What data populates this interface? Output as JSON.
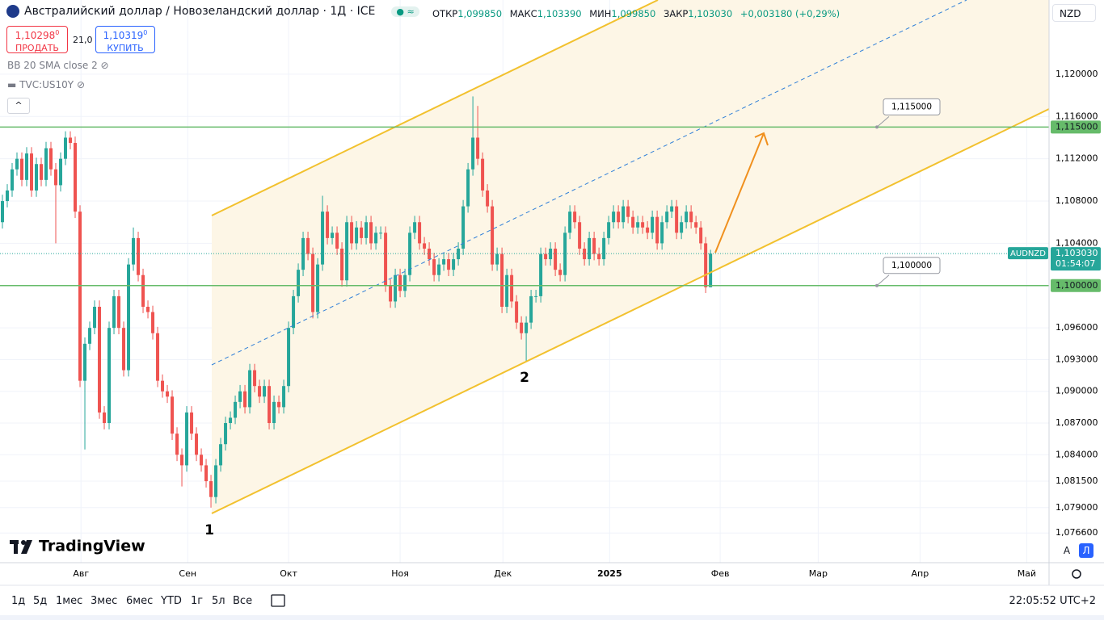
{
  "header": {
    "title": "Австралийский доллар / Новозеландский доллар · 1Д · ICE",
    "ohlc": [
      {
        "label": "ОТКР",
        "value": "1,099850"
      },
      {
        "label": "МАКС",
        "value": "1,103390"
      },
      {
        "label": "МИН",
        "value": "1,099850"
      },
      {
        "label": "ЗАКР",
        "value": "1,103030"
      }
    ],
    "change": "+0,003180 (+0,29%)",
    "currency": "NZD"
  },
  "trade": {
    "sell_price": "1,10298",
    "sell_sup": "0",
    "sell": "ПРОДАТЬ",
    "spread": "21,0",
    "buy_price": "1,10319",
    "buy_sup": "0",
    "buy": "КУПИТЬ"
  },
  "indicators": [
    "BB 20 SMA close 2",
    "TVC:US10Y"
  ],
  "chart_data": {
    "type": "candlestick",
    "symbol": "AUDNZD",
    "open": [
      1.106,
      1.108,
      1.109,
      1.111,
      1.112,
      1.11,
      1.1125,
      1.109,
      1.1115,
      1.11,
      1.113,
      1.111,
      1.1095,
      1.112,
      1.114,
      1.1135,
      1.107,
      1.091,
      1.0945,
      1.096,
      1.098,
      1.088,
      1.087,
      1.096,
      1.099,
      1.096,
      1.092,
      1.102,
      1.1045,
      1.101,
      1.098,
      1.0975,
      1.0955,
      1.091,
      1.09,
      1.0895,
      1.086,
      1.084,
      1.083,
      1.088,
      1.086,
      1.084,
      1.083,
      1.0815,
      1.08,
      1.083,
      1.085,
      1.087,
      1.0875,
      1.089,
      1.09,
      1.0885,
      1.092,
      1.0905,
      1.0895,
      1.0905,
      1.087,
      1.089,
      1.0885,
      1.0905,
      1.096,
      1.099,
      1.1015,
      1.1045,
      1.103,
      1.0975,
      1.102,
      1.107,
      1.1045,
      1.105,
      1.1035,
      1.1005,
      1.106,
      1.104,
      1.1055,
      1.1045,
      1.106,
      1.104,
      1.105,
      1.105,
      1.1,
      1.0985,
      1.101,
      1.0995,
      1.101,
      1.105,
      1.106,
      1.104,
      1.1035,
      1.1025,
      1.101,
      1.102,
      1.1025,
      1.1015,
      1.1025,
      1.1035,
      1.1075,
      1.111,
      1.114,
      1.112,
      1.109,
      1.1075,
      1.102,
      1.103,
      1.098,
      1.101,
      1.0985,
      1.0965,
      1.0955,
      1.0965,
      1.099,
      1.099,
      1.103,
      1.1025,
      1.1035,
      1.1015,
      1.101,
      1.105,
      1.107,
      1.106,
      1.1035,
      1.1025,
      1.1045,
      1.103,
      1.1025,
      1.1045,
      1.106,
      1.107,
      1.106,
      1.1075,
      1.1065,
      1.1055,
      1.106,
      1.1055,
      1.105,
      1.1065,
      1.104,
      1.106,
      1.107,
      1.1075,
      1.105,
      1.106,
      1.107,
      1.106,
      1.1055,
      1.104,
      1.09985
    ],
    "high": [
      1.1086,
      1.1096,
      1.1116,
      1.1126,
      1.1126,
      1.1131,
      1.1131,
      1.1121,
      1.1121,
      1.1136,
      1.1136,
      1.1116,
      1.1126,
      1.1146,
      1.1146,
      1.1141,
      1.1076,
      1.0951,
      1.0966,
      1.0986,
      1.0986,
      1.0886,
      1.0966,
      1.0996,
      1.0996,
      1.0966,
      1.1026,
      1.1055,
      1.1051,
      1.1016,
      1.0986,
      1.0981,
      1.0961,
      1.0916,
      1.0906,
      1.0901,
      1.0866,
      1.0846,
      1.0886,
      1.0886,
      1.0866,
      1.0846,
      1.0836,
      1.0821,
      1.0836,
      1.0856,
      1.0876,
      1.0881,
      1.0896,
      1.0906,
      1.0906,
      1.0926,
      1.0926,
      1.0911,
      1.0911,
      1.0911,
      1.0896,
      1.0896,
      1.0911,
      1.0966,
      1.0996,
      1.1021,
      1.1051,
      1.1051,
      1.1036,
      1.1026,
      1.1085,
      1.1076,
      1.1056,
      1.1056,
      1.1041,
      1.1066,
      1.1066,
      1.1061,
      1.1061,
      1.1066,
      1.1066,
      1.1056,
      1.1056,
      1.1056,
      1.1006,
      1.1016,
      1.1016,
      1.1016,
      1.1056,
      1.1066,
      1.1066,
      1.1046,
      1.1041,
      1.1031,
      1.1026,
      1.1031,
      1.1031,
      1.1031,
      1.1041,
      1.1081,
      1.1116,
      1.1179,
      1.117,
      1.1126,
      1.1096,
      1.1081,
      1.1036,
      1.1036,
      1.1016,
      1.1016,
      1.0991,
      1.0971,
      1.0971,
      1.0996,
      1.0996,
      1.1036,
      1.1036,
      1.1041,
      1.1041,
      1.1021,
      1.1056,
      1.1076,
      1.1076,
      1.1066,
      1.1041,
      1.1051,
      1.1051,
      1.1036,
      1.1051,
      1.1066,
      1.1076,
      1.1076,
      1.1081,
      1.1081,
      1.1071,
      1.1066,
      1.1066,
      1.1061,
      1.1071,
      1.1071,
      1.1066,
      1.1076,
      1.1081,
      1.1081,
      1.1066,
      1.1076,
      1.1076,
      1.1066,
      1.1061,
      1.1046,
      1.10339
    ],
    "low": [
      1.1054,
      1.1074,
      1.1084,
      1.1104,
      1.1094,
      1.1094,
      1.1084,
      1.1084,
      1.1094,
      1.1094,
      1.1104,
      1.104,
      1.1089,
      1.1114,
      1.1129,
      1.1064,
      1.0904,
      1.0845,
      1.0939,
      1.0954,
      1.0874,
      1.0864,
      1.0864,
      1.0954,
      1.0954,
      1.0914,
      1.0914,
      1.1014,
      1.1004,
      1.0974,
      1.0969,
      1.0949,
      1.0904,
      1.0894,
      1.0889,
      1.0854,
      1.0834,
      1.081,
      1.0824,
      1.0854,
      1.0834,
      1.0824,
      1.0809,
      1.079,
      1.0794,
      1.0824,
      1.0844,
      1.0864,
      1.0869,
      1.0884,
      1.0879,
      1.0879,
      1.0899,
      1.0889,
      1.0889,
      1.0864,
      1.0864,
      1.0879,
      1.0879,
      1.0899,
      1.0954,
      1.0984,
      1.1009,
      1.1024,
      1.0969,
      1.0969,
      1.1014,
      1.1039,
      1.1039,
      1.1029,
      1.0999,
      1.0999,
      1.1034,
      1.1034,
      1.1039,
      1.1039,
      1.1034,
      1.1034,
      1.1044,
      1.0994,
      1.0979,
      1.0979,
      1.0989,
      1.0989,
      1.1004,
      1.1044,
      1.1034,
      1.1029,
      1.1019,
      1.1004,
      1.1004,
      1.1014,
      1.1009,
      1.1009,
      1.1019,
      1.1029,
      1.1069,
      1.1104,
      1.1114,
      1.1084,
      1.1069,
      1.1014,
      1.1014,
      1.0974,
      1.0974,
      1.0979,
      1.0959,
      1.0949,
      1.0928,
      1.0959,
      1.0984,
      1.0984,
      1.1019,
      1.1019,
      1.1009,
      1.1004,
      1.1004,
      1.1044,
      1.1054,
      1.1029,
      1.1019,
      1.1019,
      1.1024,
      1.1019,
      1.1019,
      1.1039,
      1.1054,
      1.1054,
      1.1054,
      1.1059,
      1.1049,
      1.1049,
      1.1049,
      1.1044,
      1.1044,
      1.1034,
      1.1034,
      1.1054,
      1.1064,
      1.1044,
      1.1044,
      1.1054,
      1.1054,
      1.1049,
      1.1034,
      1.0993,
      1.09985
    ],
    "close": [
      1.108,
      1.109,
      1.111,
      1.112,
      1.11,
      1.1125,
      1.109,
      1.1115,
      1.11,
      1.113,
      1.111,
      1.1095,
      1.112,
      1.114,
      1.1135,
      1.107,
      1.091,
      1.0945,
      1.096,
      1.098,
      1.088,
      1.087,
      1.096,
      1.099,
      1.096,
      1.092,
      1.102,
      1.1045,
      1.101,
      1.098,
      1.0975,
      1.0955,
      1.091,
      1.09,
      1.0895,
      1.086,
      1.084,
      1.083,
      1.088,
      1.086,
      1.084,
      1.083,
      1.0815,
      1.08,
      1.083,
      1.085,
      1.087,
      1.0875,
      1.089,
      1.09,
      1.0885,
      1.092,
      1.0905,
      1.0895,
      1.0905,
      1.087,
      1.089,
      1.0885,
      1.0905,
      1.096,
      1.099,
      1.1015,
      1.1045,
      1.103,
      1.0975,
      1.102,
      1.107,
      1.1045,
      1.105,
      1.1035,
      1.1005,
      1.106,
      1.104,
      1.1055,
      1.1045,
      1.106,
      1.104,
      1.105,
      1.105,
      1.1,
      1.0985,
      1.101,
      1.0995,
      1.101,
      1.105,
      1.106,
      1.104,
      1.1035,
      1.1025,
      1.101,
      1.102,
      1.1025,
      1.1015,
      1.1025,
      1.1035,
      1.1075,
      1.111,
      1.114,
      1.112,
      1.109,
      1.1075,
      1.102,
      1.103,
      1.098,
      1.101,
      1.0985,
      1.0965,
      1.0955,
      1.0965,
      1.099,
      1.099,
      1.103,
      1.1025,
      1.1035,
      1.1015,
      1.101,
      1.105,
      1.107,
      1.106,
      1.1035,
      1.1025,
      1.1045,
      1.103,
      1.1025,
      1.1045,
      1.106,
      1.107,
      1.106,
      1.1075,
      1.1065,
      1.1055,
      1.106,
      1.1055,
      1.105,
      1.1065,
      1.104,
      1.106,
      1.107,
      1.1075,
      1.105,
      1.106,
      1.107,
      1.106,
      1.1055,
      1.104,
      1.09985,
      1.10303
    ],
    "xlim": [
      -0.5,
      215.8
    ],
    "xticks": [
      {
        "value": 16.2,
        "label": "Авг"
      },
      {
        "value": 38.2,
        "label": "Сен"
      },
      {
        "value": 59,
        "label": "Окт"
      },
      {
        "value": 82,
        "label": "Ноя"
      },
      {
        "value": 103.2,
        "label": "Дек"
      },
      {
        "value": 125.2,
        "label": "2025"
      },
      {
        "value": 148,
        "label": "Фев"
      },
      {
        "value": 168.2,
        "label": "Мар"
      },
      {
        "value": 189.2,
        "label": "Апр"
      },
      {
        "value": 211.2,
        "label": "Май"
      }
    ],
    "ylim": [
      1.07379,
      1.12702
    ],
    "yticks": [
      {
        "value": 1.12,
        "label": "1,120000"
      },
      {
        "value": 1.116,
        "label": "1,116000"
      },
      {
        "value": 1.112,
        "label": "1,112000"
      },
      {
        "value": 1.108,
        "label": "1,108000"
      },
      {
        "value": 1.104,
        "label": "1,104000"
      },
      {
        "value": 1.096,
        "label": "1,096000"
      },
      {
        "value": 1.093,
        "label": "1,093000"
      },
      {
        "value": 1.09,
        "label": "1,090000"
      },
      {
        "value": 1.087,
        "label": "1,087000"
      },
      {
        "value": 1.084,
        "label": "1,084000"
      },
      {
        "value": 1.0815,
        "label": "1,081500"
      },
      {
        "value": 1.079,
        "label": "1,079000"
      },
      {
        "value": 1.0766,
        "label": "1,076600"
      }
    ],
    "grid": true,
    "last_price": {
      "value": 1.10303,
      "label": "1,103030"
    },
    "countdown": "01:54:07",
    "levels": [
      {
        "value": 1.115,
        "label": "1,115000"
      },
      {
        "value": 1.1,
        "label": "1,100000"
      }
    ],
    "annotations": [
      "1",
      "2"
    ],
    "colors": {
      "up": "#26a69a",
      "down": "#ef5350",
      "level": "#66bb6a",
      "channel": "#f2c12e",
      "arrow": "#f0901e"
    }
  },
  "toolbar": {
    "ranges": [
      "1д",
      "5д",
      "1мес",
      "3мес",
      "6мес",
      "YTD",
      "1г",
      "5л",
      "Все"
    ],
    "time": "22:05:52 UTC+2",
    "scale_buttons": [
      "A",
      "Л"
    ]
  },
  "logo": "TradingView"
}
